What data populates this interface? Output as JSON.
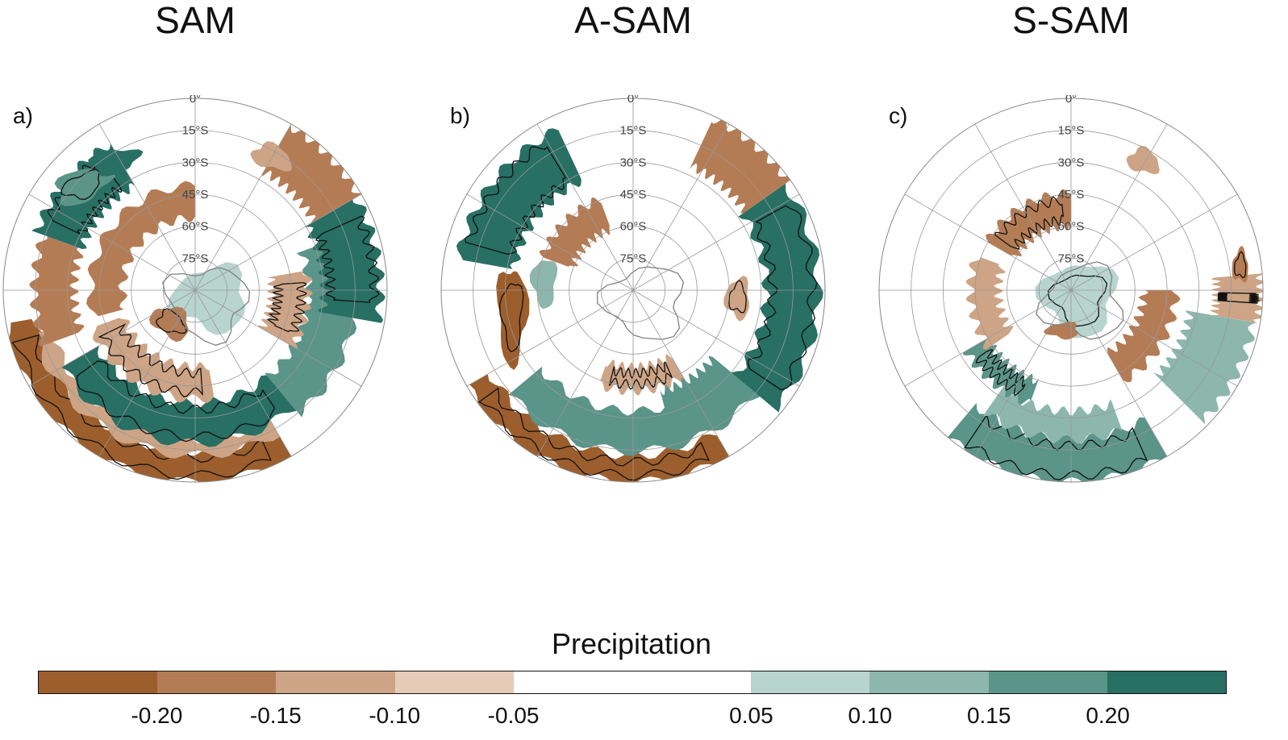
{
  "panels": [
    {
      "title": "SAM",
      "label": "a)"
    },
    {
      "title": "A-SAM",
      "label": "b)"
    },
    {
      "title": "S-SAM",
      "label": "c)"
    }
  ],
  "latitude_labels": [
    "0°",
    "15°S",
    "30°S",
    "45°S",
    "60°S",
    "75°S"
  ],
  "colorbar": {
    "title": "Precipitation",
    "colors": [
      "#9c5e2d",
      "#b47c55",
      "#cda485",
      "#e6cbb8",
      "#ffffff",
      "#ffffff",
      "#b8d4cf",
      "#8db6ad",
      "#5b9489",
      "#286f64"
    ],
    "ticks": [
      "-0.20",
      "-0.15",
      "-0.10",
      "-0.05",
      "0.05",
      "0.10",
      "0.15",
      "0.20"
    ]
  },
  "colors": {
    "brown_strong": "#9c5e2d",
    "brown_medium": "#b47c55",
    "brown_light": "#cda485",
    "brown_pale": "#e6cbb8",
    "teal_pale": "#b8d4cf",
    "teal_light": "#8db6ad",
    "teal_medium": "#5b9489",
    "teal_strong": "#286f64",
    "contour": "#111111",
    "coastline": "#808080"
  }
}
